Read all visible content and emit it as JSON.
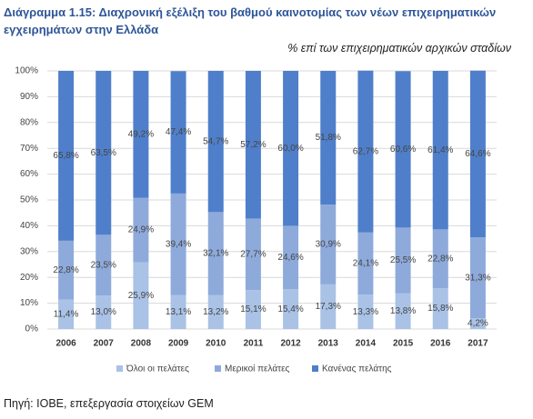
{
  "chart_data": {
    "type": "stacked-bar",
    "title": "Διάγραμμα 1.15: Διαχρονική εξέλιξη του βαθμού καινοτομίας των νέων επιχειρηματικών εγχειρημάτων στην Ελλάδα",
    "subtitle": "% επί των επιχειρηματικών αρχικών σταδίων",
    "source": "Πηγή: ΙΟΒΕ, επεξεργασία στοιχείων GEM",
    "categories": [
      "2006",
      "2007",
      "2008",
      "2009",
      "2010",
      "2011",
      "2012",
      "2013",
      "2014",
      "2015",
      "2016",
      "2017"
    ],
    "series": [
      {
        "name": "Όλοι οι πελάτες",
        "color": "#a9c2e6",
        "values": [
          11.4,
          13.0,
          25.9,
          13.1,
          13.2,
          15.1,
          15.4,
          17.3,
          13.3,
          13.8,
          15.8,
          4.2
        ],
        "value_labels": [
          "11,4%",
          "13,0%",
          "25,9%",
          "13,1%",
          "13,2%",
          "15,1%",
          "15,4%",
          "17,3%",
          "13,3%",
          "13,8%",
          "15,8%",
          "4,2%"
        ]
      },
      {
        "name": "Μερικοί πελάτες",
        "color": "#8eaadb",
        "values": [
          22.8,
          23.5,
          24.9,
          39.4,
          32.1,
          27.7,
          24.6,
          30.9,
          24.1,
          25.5,
          22.8,
          31.3
        ],
        "value_labels": [
          "22,8%",
          "23,5%",
          "24,9%",
          "39,4%",
          "32,1%",
          "27,7%",
          "24,6%",
          "30,9%",
          "24,1%",
          "25,5%",
          "22,8%",
          "31,3%"
        ]
      },
      {
        "name": "Κανένας πελάτης",
        "color": "#4f7fca",
        "values": [
          65.8,
          63.5,
          49.2,
          47.4,
          54.7,
          57.2,
          60.0,
          51.8,
          62.7,
          60.6,
          61.4,
          64.6
        ],
        "value_labels": [
          "65,8%",
          "63,5%",
          "49,2%",
          "47,4%",
          "54,7%",
          "57,2%",
          "60,0%",
          "51,8%",
          "62,7%",
          "60,6%",
          "61,4%",
          "64,6%"
        ]
      }
    ],
    "ylim": [
      0,
      100
    ],
    "yticks": [
      {
        "value": 0,
        "label": "0%"
      },
      {
        "value": 10,
        "label": "10%"
      },
      {
        "value": 20,
        "label": "20%"
      },
      {
        "value": 30,
        "label": "30%"
      },
      {
        "value": 40,
        "label": "40%"
      },
      {
        "value": 50,
        "label": "50%"
      },
      {
        "value": 60,
        "label": "60%"
      },
      {
        "value": 70,
        "label": "70%"
      },
      {
        "value": 80,
        "label": "80%"
      },
      {
        "value": 90,
        "label": "90%"
      },
      {
        "value": 100,
        "label": "100%"
      }
    ],
    "grid": true
  }
}
